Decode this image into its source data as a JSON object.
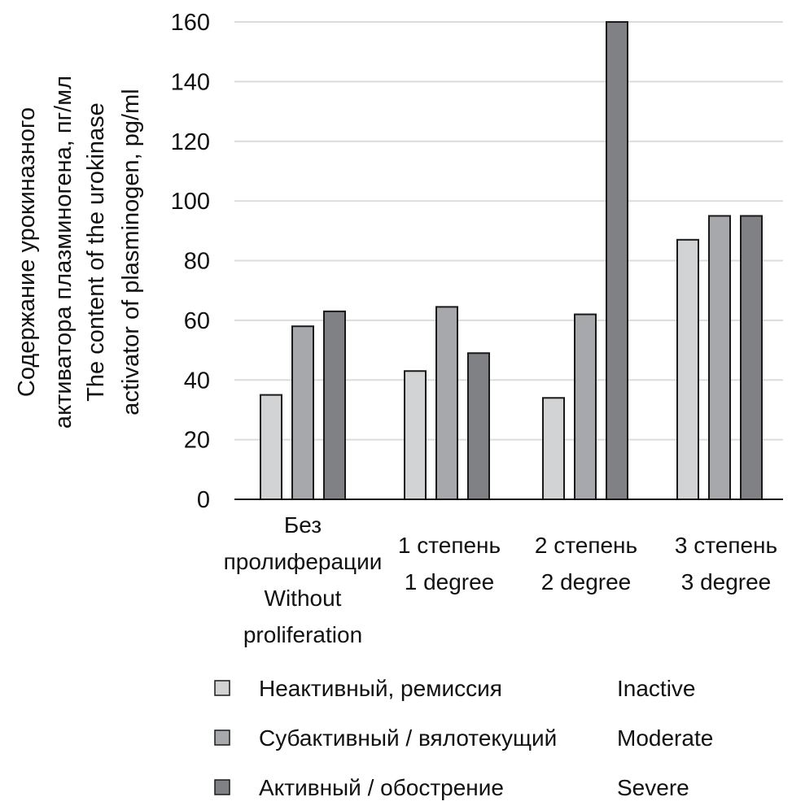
{
  "chart_data": {
    "type": "bar",
    "title": "",
    "xlabel": "",
    "ylabel_lines": [
      "Содержание урокиназного",
      "активатора плазминогена, пг/мл",
      "The content of the urokinase",
      "activator of plasminogen, pg/ml"
    ],
    "ylim": [
      0,
      160
    ],
    "yticks": [
      0,
      20,
      40,
      60,
      80,
      100,
      120,
      140,
      160
    ],
    "grid": true,
    "categories": [
      {
        "lines": [
          "Без",
          "пролиферации",
          "Without",
          "proliferation"
        ]
      },
      {
        "lines": [
          "1 степень",
          "1 degree"
        ]
      },
      {
        "lines": [
          "2 степень",
          "2 degree"
        ]
      },
      {
        "lines": [
          "3 степень",
          "3 degree"
        ]
      }
    ],
    "series": [
      {
        "name": "Inactive",
        "name_ru": "Неактивный, ремиссия",
        "color": "#d2d3d5",
        "values": [
          35,
          43,
          34,
          87
        ]
      },
      {
        "name": "Moderate",
        "name_ru": "Субактивный / вялотекущий",
        "color": "#a7a8ab",
        "values": [
          58,
          64.5,
          62,
          95
        ]
      },
      {
        "name": "Severe",
        "name_ru": "Активный / обострение",
        "color": "#808184",
        "values": [
          63,
          49,
          160,
          95
        ]
      }
    ],
    "legend_position": "bottom"
  }
}
